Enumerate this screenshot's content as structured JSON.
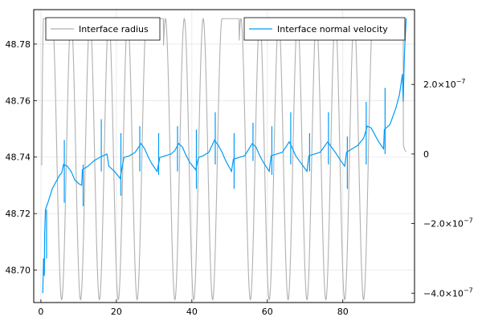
{
  "chart_data": {
    "type": "line",
    "title": "",
    "grid": true,
    "x_axis": {
      "range": [
        -1.9,
        99
      ],
      "ticks": [
        0,
        20,
        40,
        60,
        80
      ],
      "tick_labels": [
        "0",
        "20",
        "40",
        "60",
        "80"
      ],
      "label": ""
    },
    "y_left": {
      "range": [
        48.6885,
        48.7922
      ],
      "ticks": [
        48.7,
        48.72,
        48.74,
        48.76,
        48.78
      ],
      "tick_labels": [
        "48.70",
        "48.72",
        "48.74",
        "48.76",
        "48.78"
      ],
      "label": ""
    },
    "y_right": {
      "range": [
        -4.27e-07,
        4.15e-07
      ],
      "ticks": [
        -4e-07,
        -2e-07,
        0,
        2e-07
      ],
      "tick_labels": [
        {
          "mantissa": "−4.0×10",
          "exp": "−7"
        },
        {
          "mantissa": "−2.0×10",
          "exp": "−7"
        },
        {
          "mantissa": "0",
          "exp": ""
        },
        {
          "mantissa": "2.0×10",
          "exp": "−7"
        }
      ],
      "label": ""
    },
    "series": [
      {
        "name": "Interface radius",
        "axis": "left",
        "color": "#b0b0b0",
        "x_start": 0.2,
        "x_end": 96.8,
        "y_start": 48.737,
        "y_end": 48.742,
        "min": 48.6895,
        "max": 48.789,
        "min_x": [
          5.5,
          10.5,
          15.5,
          20.5,
          25.5,
          30.5,
          35.5,
          40.5,
          45.5,
          50.5,
          55.5,
          60.5,
          65.5,
          70.5,
          75.5,
          80.5,
          85.5
        ],
        "max_x": [
          0.7,
          8.0,
          13.0,
          18.0,
          23.0,
          28.0,
          33.0,
          38.0,
          43.0,
          48.0,
          53.0,
          58.0,
          63.0,
          68.0,
          73.0,
          78.0,
          83.0,
          88.0,
          93.0
        ],
        "plateau_ranges": [
          [
            0.7,
            3.0
          ],
          [
            28.0,
            32.5
          ],
          [
            48.0,
            52.5
          ],
          [
            88.0,
            96.0
          ]
        ]
      },
      {
        "name": "Interface normal velocity",
        "axis": "right",
        "color": "#009af9",
        "points": [
          [
            0.5,
            -4e-07
          ],
          [
            0.7,
            -3e-07
          ],
          [
            0.9,
            -3.5e-07
          ],
          [
            1.0,
            -2.3e-07
          ],
          [
            1.2,
            -1.6e-07
          ],
          [
            2.0,
            -1.35e-07
          ],
          [
            3.0,
            -1e-07
          ],
          [
            4.0,
            -8e-08
          ],
          [
            5.0,
            -6e-08
          ],
          [
            5.5,
            -5.5e-08
          ],
          [
            6.0,
            -3e-08
          ],
          [
            7.0,
            -3.5e-08
          ],
          [
            8.0,
            -5e-08
          ],
          [
            9.0,
            -7.5e-08
          ],
          [
            10.0,
            -8.5e-08
          ],
          [
            10.8,
            -9e-08
          ],
          [
            11.0,
            -4.5e-08
          ],
          [
            12.5,
            -3.5e-08
          ],
          [
            14.0,
            -2e-08
          ],
          [
            15.5,
            -1e-08
          ],
          [
            16.5,
            -5e-09
          ],
          [
            17.5,
            0.0
          ],
          [
            18.0,
            -3.5e-08
          ],
          [
            19.5,
            -5e-08
          ],
          [
            21.0,
            -7e-08
          ],
          [
            22.0,
            -1e-08
          ],
          [
            23.5,
            -5e-09
          ],
          [
            25.0,
            5e-09
          ],
          [
            26.5,
            3e-08
          ],
          [
            27.5,
            1.5e-08
          ],
          [
            28.5,
            -1e-08
          ],
          [
            29.5,
            -3e-08
          ],
          [
            30.8,
            -5e-08
          ],
          [
            31.5,
            -1e-08
          ],
          [
            33.0,
            -5e-09
          ],
          [
            34.5,
            0.0
          ],
          [
            35.5,
            1e-08
          ],
          [
            36.5,
            3e-08
          ],
          [
            37.5,
            2e-08
          ],
          [
            38.5,
            -5e-09
          ],
          [
            39.5,
            -2.5e-08
          ],
          [
            41.0,
            -4.5e-08
          ],
          [
            41.8,
            -1e-08
          ],
          [
            43.0,
            -5e-09
          ],
          [
            44.5,
            5e-09
          ],
          [
            46.0,
            4e-08
          ],
          [
            47.0,
            2.5e-08
          ],
          [
            48.0,
            5e-09
          ],
          [
            49.0,
            -2e-08
          ],
          [
            50.5,
            -5e-08
          ],
          [
            51.0,
            -1.5e-08
          ],
          [
            52.5,
            -1e-08
          ],
          [
            54.0,
            -5e-09
          ],
          [
            56.0,
            3e-08
          ],
          [
            57.0,
            2e-08
          ],
          [
            58.0,
            -5e-09
          ],
          [
            59.0,
            -2.5e-08
          ],
          [
            60.5,
            -5e-08
          ],
          [
            61.0,
            -5e-09
          ],
          [
            62.5,
            0.0
          ],
          [
            64.0,
            5e-09
          ],
          [
            65.8,
            3.5e-08
          ],
          [
            66.5,
            2e-08
          ],
          [
            67.5,
            -5e-09
          ],
          [
            68.5,
            -2e-08
          ],
          [
            70.5,
            -5e-08
          ],
          [
            71.0,
            -5e-09
          ],
          [
            72.5,
            0.0
          ],
          [
            74.0,
            5e-09
          ],
          [
            76.0,
            3.5e-08
          ],
          [
            77.0,
            2e-08
          ],
          [
            78.0,
            5e-09
          ],
          [
            79.5,
            -2e-08
          ],
          [
            80.5,
            -3.5e-08
          ],
          [
            81.0,
            5e-09
          ],
          [
            82.5,
            1.5e-08
          ],
          [
            84.0,
            2.5e-08
          ],
          [
            85.5,
            4.5e-08
          ],
          [
            86.5,
            8e-08
          ],
          [
            87.5,
            7.5e-08
          ],
          [
            88.5,
            5.5e-08
          ],
          [
            89.5,
            3.5e-08
          ],
          [
            90.8,
            1.5e-08
          ],
          [
            91.0,
            7e-08
          ],
          [
            92.5,
            8.5e-08
          ],
          [
            94.0,
            1.3e-07
          ],
          [
            95.0,
            1.7e-07
          ],
          [
            95.8,
            2.3e-07
          ],
          [
            96.0,
            1.5e-07
          ],
          [
            96.3,
            2.8e-07
          ],
          [
            96.6,
            3.5e-07
          ],
          [
            96.8,
            3.9e-07
          ]
        ],
        "spikes": [
          {
            "x": 1.5,
            "lo": -3e-07,
            "hi": -1.6e-07
          },
          {
            "x": 6.2,
            "lo": -1.4e-07,
            "hi": 4e-08
          },
          {
            "x": 11.2,
            "lo": -1.5e-07,
            "hi": -3e-08
          },
          {
            "x": 16.0,
            "lo": -5e-08,
            "hi": 1e-07
          },
          {
            "x": 21.2,
            "lo": -1.2e-07,
            "hi": 6e-08
          },
          {
            "x": 26.2,
            "lo": -5e-08,
            "hi": 8e-08
          },
          {
            "x": 31.2,
            "lo": -6e-08,
            "hi": 6e-08
          },
          {
            "x": 36.2,
            "lo": -5e-08,
            "hi": 8e-08
          },
          {
            "x": 41.2,
            "lo": -1e-07,
            "hi": 7e-08
          },
          {
            "x": 46.2,
            "lo": -3e-08,
            "hi": 1.2e-07
          },
          {
            "x": 51.2,
            "lo": -1e-07,
            "hi": 6e-08
          },
          {
            "x": 56.2,
            "lo": -2e-08,
            "hi": 9e-08
          },
          {
            "x": 61.2,
            "lo": -6e-08,
            "hi": 8e-08
          },
          {
            "x": 66.2,
            "lo": -3e-08,
            "hi": 1.2e-07
          },
          {
            "x": 71.2,
            "lo": -5e-08,
            "hi": 6e-08
          },
          {
            "x": 76.2,
            "lo": -3e-08,
            "hi": 1.2e-07
          },
          {
            "x": 81.2,
            "lo": -1e-07,
            "hi": 5e-08
          },
          {
            "x": 86.2,
            "lo": -3e-08,
            "hi": 1.5e-07
          },
          {
            "x": 91.2,
            "lo": 0.0,
            "hi": 1.9e-07
          }
        ]
      }
    ],
    "legends": [
      {
        "series": "Interface radius",
        "position": "top-left"
      },
      {
        "series": "Interface normal velocity",
        "position": "top-right"
      }
    ]
  }
}
